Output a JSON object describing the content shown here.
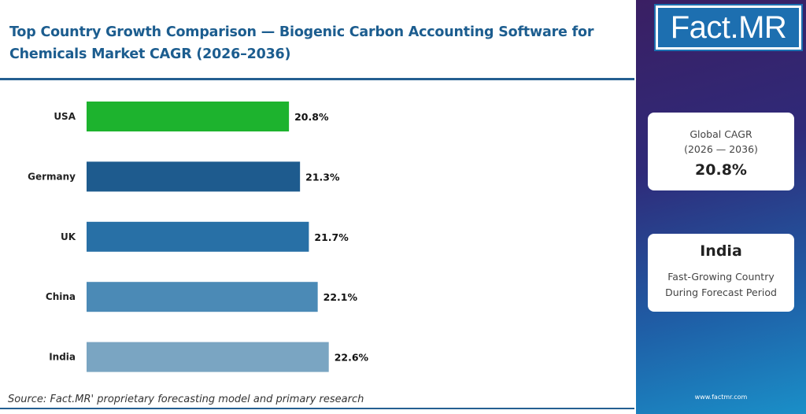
{
  "header": {
    "title_line1": "Top Country Growth Comparison — Biogenic Carbon Accounting Software for",
    "title_line2": "Chemicals Market CAGR (2026–2036)"
  },
  "footer": {
    "source": "Source: Fact.MR' proprietary forecasting model and primary research"
  },
  "chart_data": {
    "type": "bar",
    "orientation": "horizontal",
    "categories": [
      "USA",
      "Germany",
      "UK",
      "China",
      "India"
    ],
    "values": [
      20.8,
      21.3,
      21.7,
      22.1,
      22.6
    ],
    "value_labels": [
      "20.8%",
      "21.3%",
      "21.7%",
      "22.1%",
      "22.6%"
    ],
    "bar_colors": [
      "#1db32e",
      "#1e5b8e",
      "#2870a6",
      "#4b8ab6",
      "#7aa5c2"
    ],
    "title": "Top Country Growth Comparison — Biogenic Carbon Accounting Software for Chemicals Market CAGR (2026–2036)",
    "xlabel": "",
    "ylabel": "",
    "grid": false,
    "legend": "none"
  },
  "sidebar": {
    "logo_text": "Fact.MR",
    "global_cagr_label_line1": "Global CAGR",
    "global_cagr_label_line2": "(2026 — 2036)",
    "global_cagr_value": "20.8%",
    "fastest_country": "India",
    "fastest_desc_line1": "Fast-Growing Country",
    "fastest_desc_line2": "During Forecast Period",
    "website": "www.factmr.com"
  },
  "colors": {
    "title": "#1c5d8f",
    "rule": "#245f91",
    "sidebar_top": "#3a1f63",
    "sidebar_bottom": "#1a8fc8",
    "logo_blue": "#1d6fb0"
  }
}
